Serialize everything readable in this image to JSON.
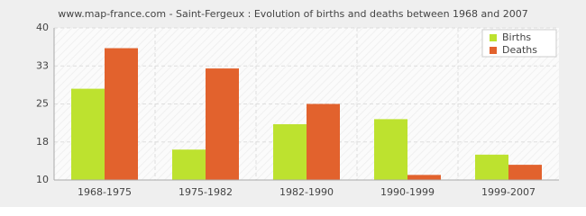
{
  "chart_data": {
    "type": "bar",
    "title": "www.map-france.com - Saint-Fergeux : Evolution of births and deaths between 1968 and 2007",
    "categories": [
      "1968-1975",
      "1975-1982",
      "1982-1990",
      "1990-1999",
      "1999-2007"
    ],
    "series": [
      {
        "name": "Births",
        "color": "#bde22f",
        "values": [
          28,
          16,
          21,
          22,
          15
        ]
      },
      {
        "name": "Deaths",
        "color": "#e2622d",
        "values": [
          36,
          32,
          25,
          11,
          13
        ]
      }
    ],
    "ylim": [
      10,
      40
    ],
    "yticks": [
      10,
      {
        "value": 17.5,
        "label": "18"
      },
      25,
      {
        "value": 32.5,
        "label": "33"
      },
      40
    ],
    "grid": true,
    "legend": "top-right"
  }
}
